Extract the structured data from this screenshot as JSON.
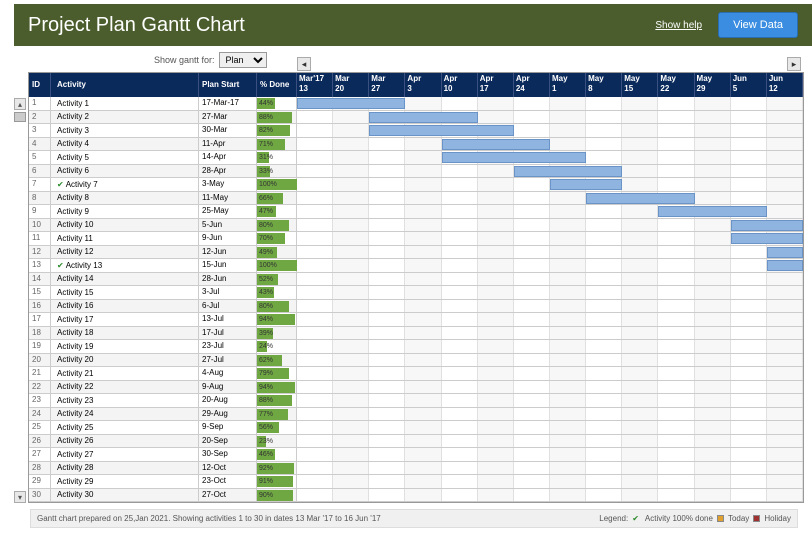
{
  "header": {
    "title": "Project Plan Gantt Chart",
    "show_help": "Show help",
    "view_data": "View Data"
  },
  "controls": {
    "show_gantt_label": "Show gantt for:",
    "plan_select": "Plan"
  },
  "table_headers": {
    "id": "ID",
    "activity": "Activity",
    "plan_start": "Plan Start",
    "pct_done": "% Done"
  },
  "timeline": {
    "num_cols": 14,
    "cols": [
      {
        "month": "Mar'17",
        "day": "13"
      },
      {
        "month": "Mar",
        "day": "20"
      },
      {
        "month": "Mar",
        "day": "27"
      },
      {
        "month": "Apr",
        "day": "3"
      },
      {
        "month": "Apr",
        "day": "10"
      },
      {
        "month": "Apr",
        "day": "17"
      },
      {
        "month": "Apr",
        "day": "24"
      },
      {
        "month": "May",
        "day": "1"
      },
      {
        "month": "May",
        "day": "8"
      },
      {
        "month": "May",
        "day": "15"
      },
      {
        "month": "May",
        "day": "22"
      },
      {
        "month": "May",
        "day": "29"
      },
      {
        "month": "Jun",
        "day": "5"
      },
      {
        "month": "Jun",
        "day": "12"
      }
    ]
  },
  "activities": [
    {
      "id": 1,
      "name": "Activity 1",
      "plan_start": "17-Mar-17",
      "pct": 44,
      "done100": false,
      "bar_start": 0,
      "bar_span": 3
    },
    {
      "id": 2,
      "name": "Activity 2",
      "plan_start": "27-Mar",
      "pct": 88,
      "done100": false,
      "bar_start": 2,
      "bar_span": 3
    },
    {
      "id": 3,
      "name": "Activity 3",
      "plan_start": "30-Mar",
      "pct": 82,
      "done100": false,
      "bar_start": 2,
      "bar_span": 4
    },
    {
      "id": 4,
      "name": "Activity 4",
      "plan_start": "11-Apr",
      "pct": 71,
      "done100": false,
      "bar_start": 4,
      "bar_span": 3
    },
    {
      "id": 5,
      "name": "Activity 5",
      "plan_start": "14-Apr",
      "pct": 31,
      "done100": false,
      "bar_start": 4,
      "bar_span": 4
    },
    {
      "id": 6,
      "name": "Activity 6",
      "plan_start": "28-Apr",
      "pct": 33,
      "done100": false,
      "bar_start": 6,
      "bar_span": 3
    },
    {
      "id": 7,
      "name": "Activity 7",
      "plan_start": "3-May",
      "pct": 100,
      "done100": true,
      "bar_start": 7,
      "bar_span": 2
    },
    {
      "id": 8,
      "name": "Activity 8",
      "plan_start": "11-May",
      "pct": 66,
      "done100": false,
      "bar_start": 8,
      "bar_span": 3
    },
    {
      "id": 9,
      "name": "Activity 9",
      "plan_start": "25-May",
      "pct": 47,
      "done100": false,
      "bar_start": 10,
      "bar_span": 3
    },
    {
      "id": 10,
      "name": "Activity 10",
      "plan_start": "5-Jun",
      "pct": 80,
      "done100": false,
      "bar_start": 12,
      "bar_span": 2
    },
    {
      "id": 11,
      "name": "Activity 11",
      "plan_start": "9-Jun",
      "pct": 70,
      "done100": false,
      "bar_start": 12,
      "bar_span": 2
    },
    {
      "id": 12,
      "name": "Activity 12",
      "plan_start": "12-Jun",
      "pct": 49,
      "done100": false,
      "bar_start": 13,
      "bar_span": 1
    },
    {
      "id": 13,
      "name": "Activity 13",
      "plan_start": "15-Jun",
      "pct": 100,
      "done100": true,
      "bar_start": 13,
      "bar_span": 1
    },
    {
      "id": 14,
      "name": "Activity 14",
      "plan_start": "28-Jun",
      "pct": 52,
      "done100": false,
      "bar_start": null,
      "bar_span": 0
    },
    {
      "id": 15,
      "name": "Activity 15",
      "plan_start": "3-Jul",
      "pct": 43,
      "done100": false,
      "bar_start": null,
      "bar_span": 0
    },
    {
      "id": 16,
      "name": "Activity 16",
      "plan_start": "6-Jul",
      "pct": 80,
      "done100": false,
      "bar_start": null,
      "bar_span": 0
    },
    {
      "id": 17,
      "name": "Activity 17",
      "plan_start": "13-Jul",
      "pct": 94,
      "done100": false,
      "bar_start": null,
      "bar_span": 0
    },
    {
      "id": 18,
      "name": "Activity 18",
      "plan_start": "17-Jul",
      "pct": 39,
      "done100": false,
      "bar_start": null,
      "bar_span": 0
    },
    {
      "id": 19,
      "name": "Activity 19",
      "plan_start": "23-Jul",
      "pct": 24,
      "done100": false,
      "bar_start": null,
      "bar_span": 0
    },
    {
      "id": 20,
      "name": "Activity 20",
      "plan_start": "27-Jul",
      "pct": 62,
      "done100": false,
      "bar_start": null,
      "bar_span": 0
    },
    {
      "id": 21,
      "name": "Activity 21",
      "plan_start": "4-Aug",
      "pct": 79,
      "done100": false,
      "bar_start": null,
      "bar_span": 0
    },
    {
      "id": 22,
      "name": "Activity 22",
      "plan_start": "9-Aug",
      "pct": 94,
      "done100": false,
      "bar_start": null,
      "bar_span": 0
    },
    {
      "id": 23,
      "name": "Activity 23",
      "plan_start": "20-Aug",
      "pct": 88,
      "done100": false,
      "bar_start": null,
      "bar_span": 0
    },
    {
      "id": 24,
      "name": "Activity 24",
      "plan_start": "29-Aug",
      "pct": 77,
      "done100": false,
      "bar_start": null,
      "bar_span": 0
    },
    {
      "id": 25,
      "name": "Activity 25",
      "plan_start": "9-Sep",
      "pct": 56,
      "done100": false,
      "bar_start": null,
      "bar_span": 0
    },
    {
      "id": 26,
      "name": "Activity 26",
      "plan_start": "20-Sep",
      "pct": 23,
      "done100": false,
      "bar_start": null,
      "bar_span": 0
    },
    {
      "id": 27,
      "name": "Activity 27",
      "plan_start": "30-Sep",
      "pct": 46,
      "done100": false,
      "bar_start": null,
      "bar_span": 0
    },
    {
      "id": 28,
      "name": "Activity 28",
      "plan_start": "12-Oct",
      "pct": 92,
      "done100": false,
      "bar_start": null,
      "bar_span": 0
    },
    {
      "id": 29,
      "name": "Activity 29",
      "plan_start": "23-Oct",
      "pct": 91,
      "done100": false,
      "bar_start": null,
      "bar_span": 0
    },
    {
      "id": 30,
      "name": "Activity 30",
      "plan_start": "27-Oct",
      "pct": 90,
      "done100": false,
      "bar_start": null,
      "bar_span": 0
    }
  ],
  "footer": {
    "text": "Gantt chart prepared on 25,Jan 2021. Showing activities 1 to 30 in dates 13 Mar '17 to 16 Jun '17",
    "legend_label": "Legend:",
    "legend_done": "Activity 100% done",
    "legend_today": "Today",
    "legend_holiday": "Holiday"
  },
  "colors": {
    "header_bg": "#4b5d2d",
    "table_header_bg": "#0b2a5c",
    "done_bar": "#6fa843",
    "gantt_bar": "#8fb4e0",
    "gantt_bar_border": "#6a94c8",
    "today": "#e0a030",
    "holiday": "#a03030"
  }
}
